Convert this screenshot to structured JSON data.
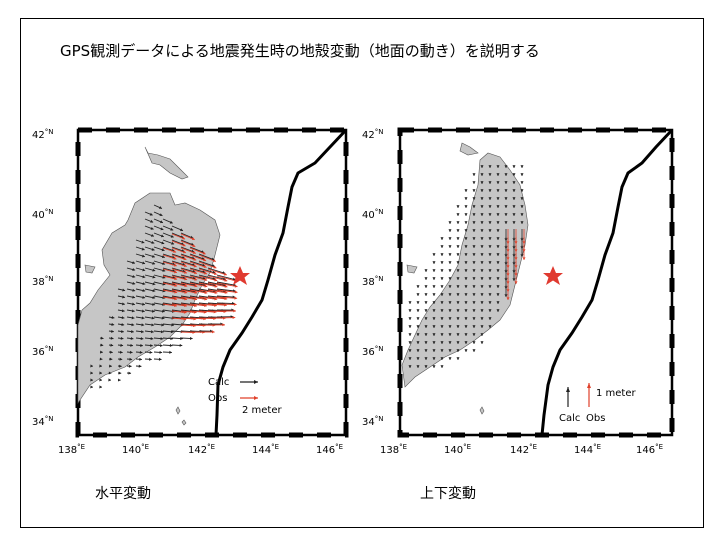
{
  "title": "GPS観測データによる地震発生時の地殻変動（地面の動き）を説明する",
  "maps": [
    {
      "caption": "水平変動",
      "legend": {
        "calc": "Calc",
        "obs": "Obs",
        "scale": "2 meter"
      }
    },
    {
      "caption": "上下変動",
      "legend": {
        "calc": "Calc",
        "obs": "Obs",
        "scale": "1 meter"
      }
    }
  ],
  "lat_ticks": [
    {
      "deg": "42",
      "unit": "°N"
    },
    {
      "deg": "40",
      "unit": "°N"
    },
    {
      "deg": "38",
      "unit": "°N"
    },
    {
      "deg": "36",
      "unit": "°N"
    },
    {
      "deg": "34",
      "unit": "°N"
    }
  ],
  "lon_ticks": [
    {
      "deg": "138",
      "unit": "°E"
    },
    {
      "deg": "140",
      "unit": "°E"
    },
    {
      "deg": "142",
      "unit": "°E"
    },
    {
      "deg": "144",
      "unit": "°E"
    },
    {
      "deg": "146",
      "unit": "°E"
    }
  ],
  "colors": {
    "land": "#c6c6c6",
    "calc_arrow": "#222222",
    "obs_arrow": "#e0402a",
    "epicenter": "#e03a30"
  }
}
